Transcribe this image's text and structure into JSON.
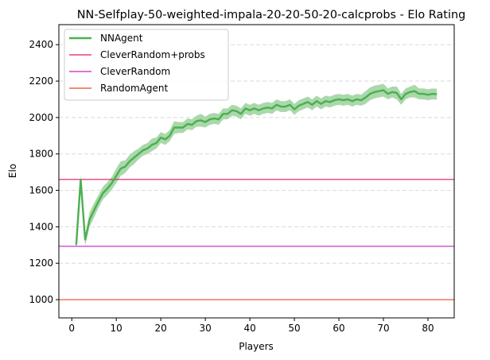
{
  "chart_data": {
    "type": "line",
    "title": "NN-Selfplay-50-weighted-impala-20-20-50-20-calcprobs - Elo Rating",
    "xlabel": "Players",
    "ylabel": "Elo",
    "xlim": [
      -2.9,
      85.9
    ],
    "ylim": [
      900,
      2510
    ],
    "xticks": [
      0,
      10,
      20,
      30,
      40,
      50,
      60,
      70,
      80
    ],
    "yticks": [
      1000,
      1200,
      1400,
      1600,
      1800,
      2000,
      2200,
      2400
    ],
    "grid": "horizontal-dashed",
    "legend_position": "top-left",
    "legend": [
      {
        "name": "NNAgent",
        "color": "#4caf50",
        "kind": "line-thick"
      },
      {
        "name": "CleverRandom+probs",
        "color": "#e6175c",
        "kind": "line"
      },
      {
        "name": "CleverRandom",
        "color": "#c51fc8",
        "kind": "line"
      },
      {
        "name": "RandomAgent",
        "color": "#e8462e",
        "kind": "line"
      }
    ],
    "horizontal_lines": [
      {
        "name": "CleverRandom+probs",
        "y": 1660,
        "color": "#e6175c"
      },
      {
        "name": "CleverRandom",
        "y": 1293,
        "color": "#c51fc8"
      },
      {
        "name": "RandomAgent",
        "y": 1000,
        "color": "#e8462e"
      }
    ],
    "series": [
      {
        "name": "NNAgent",
        "color": "#4caf50",
        "band_color": "#a5d6a7",
        "x": [
          1,
          2,
          3,
          4,
          5,
          6,
          7,
          8,
          9,
          10,
          11,
          12,
          13,
          14,
          15,
          16,
          17,
          18,
          19,
          20,
          21,
          22,
          23,
          24,
          25,
          26,
          27,
          28,
          29,
          30,
          31,
          32,
          33,
          34,
          35,
          36,
          37,
          38,
          39,
          40,
          41,
          42,
          43,
          44,
          45,
          46,
          47,
          48,
          49,
          50,
          51,
          52,
          53,
          54,
          55,
          56,
          57,
          58,
          59,
          60,
          61,
          62,
          63,
          64,
          65,
          66,
          67,
          68,
          69,
          70,
          71,
          72,
          73,
          74,
          75,
          76,
          77,
          78,
          79,
          80,
          81,
          82
        ],
        "values": [
          1300,
          1660,
          1330,
          1440,
          1490,
          1540,
          1585,
          1610,
          1640,
          1680,
          1720,
          1730,
          1760,
          1780,
          1800,
          1820,
          1830,
          1850,
          1860,
          1890,
          1880,
          1900,
          1945,
          1945,
          1945,
          1965,
          1960,
          1980,
          1985,
          1975,
          1990,
          1995,
          1990,
          2020,
          2020,
          2040,
          2035,
          2020,
          2050,
          2040,
          2050,
          2040,
          2050,
          2055,
          2050,
          2070,
          2060,
          2060,
          2070,
          2045,
          2065,
          2075,
          2085,
          2070,
          2090,
          2075,
          2090,
          2085,
          2095,
          2100,
          2095,
          2100,
          2090,
          2100,
          2095,
          2110,
          2130,
          2140,
          2145,
          2150,
          2130,
          2140,
          2135,
          2100,
          2130,
          2140,
          2145,
          2130,
          2130,
          2125,
          2130,
          2128
        ],
        "lower": [
          1285,
          1640,
          1295,
          1400,
          1450,
          1505,
          1550,
          1575,
          1605,
          1640,
          1680,
          1695,
          1725,
          1745,
          1770,
          1790,
          1800,
          1815,
          1830,
          1860,
          1850,
          1870,
          1910,
          1915,
          1915,
          1935,
          1930,
          1950,
          1950,
          1945,
          1960,
          1965,
          1960,
          1990,
          1990,
          2010,
          2005,
          1990,
          2020,
          2010,
          2020,
          2010,
          2020,
          2025,
          2020,
          2040,
          2030,
          2030,
          2040,
          2015,
          2035,
          2045,
          2055,
          2040,
          2060,
          2045,
          2060,
          2055,
          2065,
          2070,
          2065,
          2070,
          2060,
          2070,
          2065,
          2075,
          2095,
          2105,
          2110,
          2115,
          2100,
          2110,
          2100,
          2070,
          2100,
          2110,
          2110,
          2100,
          2100,
          2095,
          2100,
          2098
        ],
        "upper": [
          1315,
          1680,
          1345,
          1480,
          1530,
          1575,
          1620,
          1645,
          1675,
          1720,
          1760,
          1765,
          1795,
          1815,
          1830,
          1850,
          1860,
          1885,
          1890,
          1920,
          1910,
          1930,
          1980,
          1975,
          1975,
          1995,
          1990,
          2010,
          2020,
          2005,
          2020,
          2025,
          2020,
          2050,
          2050,
          2070,
          2065,
          2050,
          2080,
          2070,
          2080,
          2070,
          2080,
          2085,
          2080,
          2100,
          2090,
          2090,
          2100,
          2075,
          2095,
          2105,
          2115,
          2100,
          2120,
          2105,
          2120,
          2115,
          2125,
          2130,
          2125,
          2130,
          2120,
          2130,
          2125,
          2145,
          2165,
          2175,
          2180,
          2185,
          2160,
          2170,
          2170,
          2130,
          2160,
          2170,
          2180,
          2160,
          2160,
          2155,
          2160,
          2158
        ]
      }
    ]
  }
}
